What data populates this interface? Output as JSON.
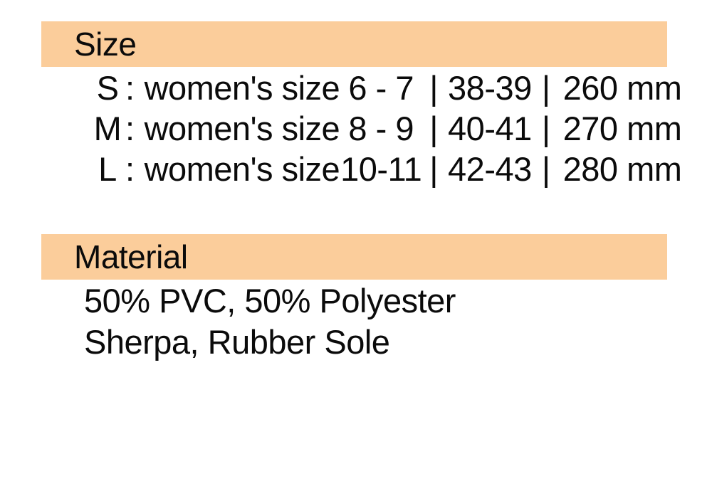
{
  "page": {
    "background_color": "#ffffff",
    "accent_color": "#fbcd9b",
    "text_color": "#0b0b0b"
  },
  "size_section": {
    "heading": "Size",
    "colon": ":",
    "pipe": "|",
    "size_prefix": "women's size",
    "rows": [
      {
        "label": "S",
        "us_range": "6 - 7",
        "eu_range": "38-39",
        "length_mm": "260 mm"
      },
      {
        "label": "M",
        "us_range": "8 - 9",
        "eu_range": "40-41",
        "length_mm": "270 mm"
      },
      {
        "label": "L",
        "us_range": "10-11",
        "eu_range": "42-43",
        "length_mm": "280 mm"
      }
    ]
  },
  "material_section": {
    "heading": "Material",
    "lines": [
      "50% PVC, 50% Polyester",
      "Sherpa, Rubber Sole"
    ]
  }
}
